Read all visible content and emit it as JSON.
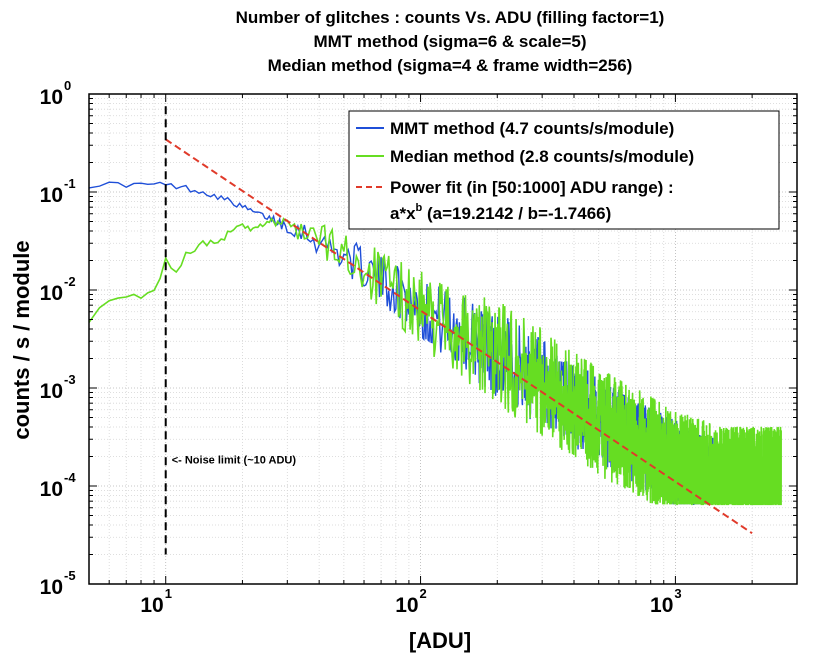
{
  "chart_data": {
    "type": "line",
    "title_lines": [
      "Number of glitches : counts Vs. ADU (filling factor=1)",
      "MMT method (sigma=6 & scale=5)",
      "Median method (sigma=4 & frame width=256)"
    ],
    "xlabel": "[ADU]",
    "ylabel": "counts / s / module",
    "xscale": "log",
    "yscale": "log",
    "xlim": [
      5,
      3000
    ],
    "ylim": [
      1e-05,
      1
    ],
    "grid": true,
    "x_ticks": [
      {
        "base": "10",
        "exp": "1",
        "value": 10
      },
      {
        "base": "10",
        "exp": "2",
        "value": 100
      },
      {
        "base": "10",
        "exp": "3",
        "value": 1000
      }
    ],
    "y_ticks": [
      {
        "base": "10",
        "exp": "0",
        "value": 1
      },
      {
        "base": "10",
        "exp": "-1",
        "value": 0.1
      },
      {
        "base": "10",
        "exp": "-2",
        "value": 0.01
      },
      {
        "base": "10",
        "exp": "-3",
        "value": 0.001
      },
      {
        "base": "10",
        "exp": "-4",
        "value": 0.0001
      },
      {
        "base": "10",
        "exp": "-5",
        "value": 1e-05
      }
    ],
    "legend_position": "top-right",
    "series": [
      {
        "name": "MMT method (4.7 counts/s/module)",
        "color": "#1f4fd8",
        "style": "solid",
        "x": [
          5,
          6,
          7,
          8,
          9,
          10,
          12,
          14,
          16,
          18,
          20,
          25,
          30,
          35,
          40,
          50,
          60,
          80,
          100,
          150,
          200,
          300,
          400,
          500,
          700,
          1000,
          1400
        ],
        "y": [
          0.118,
          0.12,
          0.119,
          0.118,
          0.12,
          0.118,
          0.11,
          0.1,
          0.09,
          0.08,
          0.07,
          0.055,
          0.045,
          0.038,
          0.03,
          0.022,
          0.016,
          0.0095,
          0.006,
          0.0032,
          0.002,
          0.001,
          0.0006,
          0.00042,
          0.00025,
          0.00015,
          0.0001
        ]
      },
      {
        "name": "Median method (2.8 counts/s/module)",
        "color": "#66dd22",
        "style": "solid",
        "x": [
          5,
          6,
          7,
          8,
          9,
          10,
          11,
          12,
          14,
          16,
          18,
          20,
          22,
          25,
          30,
          35,
          40,
          50,
          60,
          80,
          100,
          150,
          200,
          300,
          400,
          500,
          700,
          1000,
          1500,
          2000,
          2600
        ],
        "y": [
          0.005,
          0.0075,
          0.0085,
          0.0085,
          0.0095,
          0.02,
          0.015,
          0.023,
          0.03,
          0.03,
          0.04,
          0.045,
          0.04,
          0.05,
          0.045,
          0.04,
          0.032,
          0.022,
          0.016,
          0.009,
          0.006,
          0.003,
          0.002,
          0.001,
          0.0006,
          0.0004,
          0.00025,
          0.00015,
          0.0001,
          0.0001,
          0.0001
        ]
      },
      {
        "name": "Power fit (in [50:1000] ADU range) :",
        "name_line2": "a*x",
        "name_sup": "b",
        "name_line2_rest": " (a=19.2142 / b=-1.7466)",
        "color": "#e03a2a",
        "style": "dashed",
        "a": 19.2142,
        "b": -1.7466,
        "x_range": [
          10,
          2000
        ]
      }
    ],
    "annotations": [
      {
        "text": "<- Noise limit (~10 ADU)",
        "x": 10,
        "y": 0.00017
      },
      {
        "text": "noise limit line",
        "x": 10,
        "y_range": [
          2e-05,
          0.75
        ],
        "style": "black dashed vertical"
      }
    ]
  }
}
